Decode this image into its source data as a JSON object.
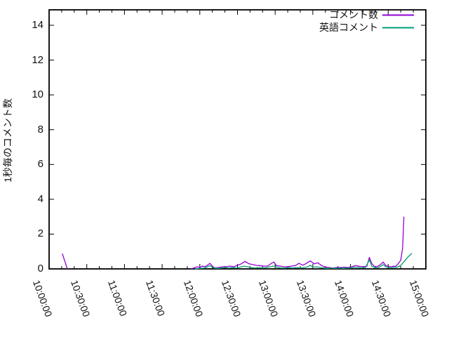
{
  "chart_data": {
    "type": "line",
    "title": "",
    "xlabel": "",
    "ylabel": "1秒毎のコメント数",
    "background_color": "#ffffff",
    "axis_color": "#000000",
    "grid": false,
    "legend_position": "top-right-inside",
    "x_range": [
      "10:00:00",
      "15:00:00"
    ],
    "y_range": [
      0,
      15
    ],
    "x_tick_labels": [
      "10:00:00",
      "10:30:00",
      "11:00:00",
      "11:30:00",
      "12:00:00",
      "12:30:00",
      "13:00:00",
      "13:30:00",
      "14:00:00",
      "14:30:00",
      "15:00:00"
    ],
    "x_minor_tick_interval_seconds": 600,
    "y_tick_labels": [
      "0",
      "2",
      "4",
      "6",
      "8",
      "10",
      "12",
      "14"
    ],
    "y_tick_values": [
      0,
      2,
      4,
      6,
      8,
      10,
      12,
      14
    ],
    "series": [
      {
        "name": "コメント数",
        "color": "#9400d3",
        "segments": [
          [
            [
              "10:10:30",
              0.88
            ],
            [
              "10:14:30",
              0
            ]
          ],
          [
            [
              "11:53:00",
              0
            ],
            [
              "11:58:00",
              0.12
            ],
            [
              "12:00:00",
              0.08
            ],
            [
              "12:02:00",
              0.16
            ],
            [
              "12:04:00",
              0.12
            ],
            [
              "12:06:00",
              0.2
            ],
            [
              "12:08:00",
              0.32
            ],
            [
              "12:10:00",
              0.16
            ],
            [
              "12:12:00",
              0.05
            ],
            [
              "12:15:00",
              0.08
            ],
            [
              "12:18:00",
              0.12
            ],
            [
              "12:21:00",
              0.12
            ],
            [
              "12:24:00",
              0.16
            ],
            [
              "12:27:00",
              0.12
            ],
            [
              "12:30:00",
              0.2
            ],
            [
              "12:33:00",
              0.29
            ],
            [
              "12:36:00",
              0.43
            ],
            [
              "12:39:00",
              0.3
            ],
            [
              "12:42:00",
              0.25
            ],
            [
              "12:45:00",
              0.2
            ],
            [
              "12:48:00",
              0.19
            ],
            [
              "12:51:00",
              0.16
            ],
            [
              "12:54:00",
              0.16
            ],
            [
              "12:57:00",
              0.32
            ],
            [
              "12:59:00",
              0.39
            ],
            [
              "13:01:00",
              0.19
            ],
            [
              "13:04:00",
              0.16
            ],
            [
              "13:07:00",
              0.12
            ],
            [
              "13:10:00",
              0.12
            ],
            [
              "13:13:00",
              0.16
            ],
            [
              "13:16:00",
              0.19
            ],
            [
              "13:19:00",
              0.32
            ],
            [
              "13:22:00",
              0.21
            ],
            [
              "13:25:00",
              0.32
            ],
            [
              "13:28:00",
              0.46
            ],
            [
              "13:31:00",
              0.29
            ],
            [
              "13:34:00",
              0.35
            ],
            [
              "13:37:00",
              0.19
            ],
            [
              "13:40:00",
              0.1
            ],
            [
              "13:43:00",
              0.08
            ],
            [
              "13:46:00",
              0.05
            ],
            [
              "13:49:00",
              0.08
            ],
            [
              "13:52:00",
              0.08
            ],
            [
              "13:55:00",
              0.1
            ],
            [
              "13:58:00",
              0.08
            ],
            [
              "14:01:00",
              0.12
            ],
            [
              "14:04:00",
              0.19
            ],
            [
              "14:07:00",
              0.15
            ],
            [
              "14:10:00",
              0.12
            ],
            [
              "14:13:00",
              0.15
            ],
            [
              "14:15:00",
              0.66
            ],
            [
              "14:17:00",
              0.3
            ],
            [
              "14:19:00",
              0.15
            ],
            [
              "14:21:00",
              0.12
            ],
            [
              "14:23:00",
              0.2
            ],
            [
              "14:26:00",
              0.39
            ],
            [
              "14:28:00",
              0.2
            ],
            [
              "14:30:00",
              0.15
            ],
            [
              "14:32:00",
              0.12
            ],
            [
              "14:34:00",
              0.15
            ],
            [
              "14:36:00",
              0.15
            ],
            [
              "14:38:00",
              0.3
            ],
            [
              "14:40:00",
              0.5
            ],
            [
              "14:41:30",
              1.2
            ],
            [
              "14:42:30",
              3.0
            ]
          ]
        ]
      },
      {
        "name": "英語コメント",
        "color": "#009e73",
        "segments": [
          [
            [
              "11:56:00",
              0
            ],
            [
              "12:00:00",
              0.03
            ],
            [
              "12:04:00",
              0.05
            ],
            [
              "12:08:00",
              0.19
            ],
            [
              "12:11:00",
              0.05
            ],
            [
              "12:14:00",
              0.03
            ],
            [
              "12:17:00",
              0.05
            ],
            [
              "12:20:00",
              0.08
            ],
            [
              "12:23:00",
              0.05
            ],
            [
              "12:26:00",
              0.08
            ],
            [
              "12:29:00",
              0.05
            ],
            [
              "12:32:00",
              0.1
            ],
            [
              "12:35:00",
              0.16
            ],
            [
              "12:38:00",
              0.12
            ],
            [
              "12:41:00",
              0.08
            ],
            [
              "12:44:00",
              0.05
            ],
            [
              "12:47:00",
              0.08
            ],
            [
              "12:50:00",
              0.05
            ],
            [
              "12:53:00",
              0.08
            ],
            [
              "12:56:00",
              0.12
            ],
            [
              "12:59:00",
              0.16
            ],
            [
              "13:02:00",
              0.08
            ],
            [
              "13:05:00",
              0.05
            ],
            [
              "13:08:00",
              0.05
            ],
            [
              "13:11:00",
              0.08
            ],
            [
              "13:14:00",
              0.05
            ],
            [
              "13:17:00",
              0.08
            ],
            [
              "13:20:00",
              0.05
            ],
            [
              "13:23:00",
              0.08
            ],
            [
              "13:26:00",
              0.12
            ],
            [
              "13:28:00",
              0.21
            ],
            [
              "13:30:00",
              0.1
            ],
            [
              "13:33:00",
              0.12
            ],
            [
              "13:36:00",
              0.08
            ],
            [
              "13:39:00",
              0.05
            ],
            [
              "13:42:00",
              0.03
            ],
            [
              "13:45:00",
              0.05
            ],
            [
              "13:48:00",
              0.03
            ],
            [
              "13:51:00",
              0.05
            ],
            [
              "13:54:00",
              0.03
            ],
            [
              "13:57:00",
              0.05
            ],
            [
              "14:00:00",
              0.05
            ],
            [
              "14:03:00",
              0.1
            ],
            [
              "14:06:00",
              0.08
            ],
            [
              "14:09:00",
              0.05
            ],
            [
              "14:12:00",
              0.08
            ],
            [
              "14:15:00",
              0.52
            ],
            [
              "14:17:00",
              0.15
            ],
            [
              "14:19:00",
              0.08
            ],
            [
              "14:21:00",
              0.05
            ],
            [
              "14:23:00",
              0.1
            ],
            [
              "14:26:00",
              0.25
            ],
            [
              "14:28:00",
              0.12
            ],
            [
              "14:30:00",
              0.08
            ],
            [
              "14:32:00",
              0.05
            ],
            [
              "14:34:00",
              0.08
            ],
            [
              "14:36:00",
              0.08
            ],
            [
              "14:38:00",
              0.12
            ],
            [
              "14:40:00",
              0.2
            ],
            [
              "14:43:00",
              0.45
            ],
            [
              "14:46:00",
              0.7
            ],
            [
              "14:49:00",
              0.9
            ]
          ]
        ]
      }
    ]
  }
}
